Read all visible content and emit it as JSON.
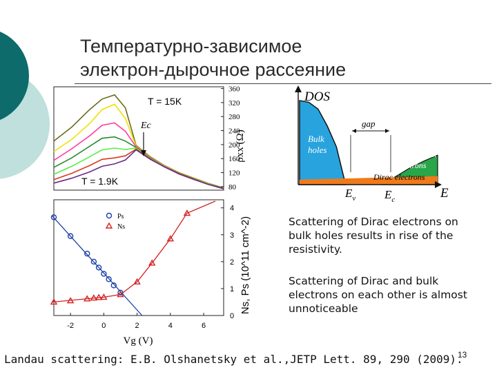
{
  "slide": {
    "title_line1": "Температурно-зависимое",
    "title_line2": "электрон-дырочное рассеяние",
    "note1": "Scattering of Dirac electrons on bulk holes results in rise of the resistivity.",
    "note2": "Scattering of Dirac and bulk electrons on each other is almost unnoticeable",
    "citation": "Landau scattering: E.B. Olshanetsky et al.,JETP Lett. 89, 290 (2009).",
    "page_number": "13"
  },
  "colors": {
    "teal_dark": "#0d6b6b",
    "teal_light": "#bfe0dd",
    "holes_blue": "#29a3dd",
    "electrons_green": "#2aa64a",
    "dirac_orange": "#f07a1a",
    "ps_blue": "#1a3fa8",
    "ns_red": "#d42020"
  },
  "chart_data": [
    {
      "type": "line",
      "title": "",
      "ylabel": "ρxx (Ω)",
      "y_ticks": [
        "360",
        "320",
        "280",
        "240",
        "200",
        "160",
        "120",
        "80"
      ],
      "ylim": [
        70,
        365
      ],
      "xlim": [
        -2.5,
        7
      ],
      "annotations": [
        "T = 15K",
        "T = 1.9K",
        "Ec"
      ],
      "series": [
        {
          "color": "#6b6b1a",
          "x": [
            -2.5,
            -1.5,
            -0.5,
            0.2,
            0.9,
            1.5,
            2.1,
            2.9,
            3.7,
            4.5,
            5.3,
            6.1,
            7.0
          ],
          "y": [
            210,
            250,
            300,
            330,
            342,
            305,
            198,
            165,
            140,
            120,
            105,
            90,
            76
          ]
        },
        {
          "color": "#f0e000",
          "x": [
            -2.5,
            -1.5,
            -0.5,
            0.2,
            0.9,
            1.5,
            2.1,
            2.9,
            3.7,
            4.5,
            5.3,
            6.1,
            7.0
          ],
          "y": [
            180,
            215,
            260,
            300,
            315,
            275,
            196,
            163,
            139,
            119,
            104,
            89,
            75
          ]
        },
        {
          "color": "#ff3aa0",
          "x": [
            -2.5,
            -1.5,
            -0.5,
            0.2,
            0.9,
            1.5,
            2.1,
            2.9,
            3.7,
            4.5,
            5.3,
            6.1,
            7.0
          ],
          "y": [
            155,
            188,
            225,
            255,
            262,
            238,
            194,
            162,
            138,
            118,
            103,
            88,
            75
          ]
        },
        {
          "color": "#2a8a2a",
          "x": [
            -2.5,
            -1.5,
            -0.5,
            0.2,
            0.9,
            1.5,
            2.1,
            2.9,
            3.7,
            4.5,
            5.3,
            6.1,
            7.0
          ],
          "y": [
            135,
            162,
            195,
            218,
            222,
            210,
            192,
            161,
            137,
            118,
            103,
            88,
            75
          ]
        },
        {
          "color": "#55ee44",
          "x": [
            -2.5,
            -1.5,
            -0.5,
            0.2,
            0.9,
            1.5,
            2.1,
            2.9,
            3.7,
            4.5,
            5.3,
            6.1,
            7.0
          ],
          "y": [
            115,
            138,
            165,
            185,
            190,
            186,
            190,
            160,
            137,
            117,
            102,
            88,
            74
          ]
        },
        {
          "color": "#d93a1a",
          "x": [
            -2.5,
            -1.5,
            -0.5,
            0.2,
            0.9,
            1.5,
            2.1,
            2.9,
            3.7,
            4.5,
            5.3,
            6.1,
            7.0
          ],
          "y": [
            100,
            118,
            140,
            158,
            162,
            168,
            187,
            159,
            136,
            117,
            102,
            87,
            74
          ]
        },
        {
          "color": "#6a2a88",
          "x": [
            -2.5,
            -1.5,
            -0.5,
            0.2,
            0.9,
            1.5,
            2.1,
            2.9,
            3.7,
            4.5,
            5.3,
            6.1,
            7.0
          ],
          "y": [
            90,
            104,
            122,
            138,
            145,
            156,
            185,
            158,
            136,
            116,
            101,
            87,
            74
          ]
        }
      ]
    },
    {
      "type": "scatter",
      "title": "",
      "xlabel": "Vg (V)",
      "ylabel": "Ns, Ps (10^11 cm^-2)",
      "x_ticks": [
        "-2",
        "0",
        "2",
        "4",
        "6"
      ],
      "y_ticks": [
        "0",
        "1",
        "2",
        "3",
        "4"
      ],
      "xlim": [
        -3,
        7.2
      ],
      "ylim": [
        0,
        4.3
      ],
      "legend": [
        "Ps",
        "Ns"
      ],
      "series": [
        {
          "name": "Ps",
          "color": "#1a3fa8",
          "marker": "circle",
          "x": [
            -3,
            -2,
            -1,
            -0.6,
            -0.3,
            0,
            0.3,
            0.6,
            1.0
          ],
          "y": [
            3.65,
            2.95,
            2.3,
            2.0,
            1.78,
            1.55,
            1.35,
            1.12,
            0.85
          ],
          "fit": {
            "x": [
              -3.1,
              2.3
            ],
            "y": [
              3.7,
              0.0
            ]
          }
        },
        {
          "name": "Ns",
          "color": "#d42020",
          "marker": "triangle",
          "x": [
            -3,
            -2,
            -1,
            -0.6,
            -0.3,
            0,
            1.0,
            2.0,
            2.9,
            4.0,
            5.0
          ],
          "y": [
            0.5,
            0.55,
            0.62,
            0.65,
            0.67,
            0.68,
            0.78,
            1.25,
            1.95,
            2.85,
            3.8
          ],
          "fit": {
            "x": [
              -3.1,
              0,
              1.0,
              2.0,
              2.9,
              4.0,
              5.0,
              6.7
            ],
            "y": [
              0.5,
              0.68,
              0.78,
              1.25,
              1.95,
              2.85,
              3.8,
              4.25
            ]
          }
        }
      ]
    },
    {
      "type": "area",
      "title": "",
      "xlabel": "E",
      "ylabel": "DOS",
      "annotations": [
        "Bulk holes",
        "gap",
        "Bulk electrons",
        "Dirac electrons",
        "Ev",
        "Ec"
      ],
      "series": [
        {
          "name": "Bulk holes",
          "color": "#29a3dd",
          "x": [
            0.0,
            0.2,
            0.4,
            0.6,
            0.8,
            1.0
          ],
          "y": [
            1.0,
            0.98,
            0.9,
            0.7,
            0.45,
            0.0
          ]
        },
        {
          "name": "Bulk electrons",
          "color": "#2aa64a",
          "x": [
            1.8,
            2.1,
            2.4,
            2.7,
            3.0
          ],
          "y": [
            0.0,
            0.1,
            0.2,
            0.28,
            0.35
          ]
        },
        {
          "name": "Dirac electrons",
          "color": "#f07a1a",
          "x": [
            0.0,
            3.0
          ],
          "y": [
            0.06,
            0.1
          ]
        }
      ]
    }
  ]
}
